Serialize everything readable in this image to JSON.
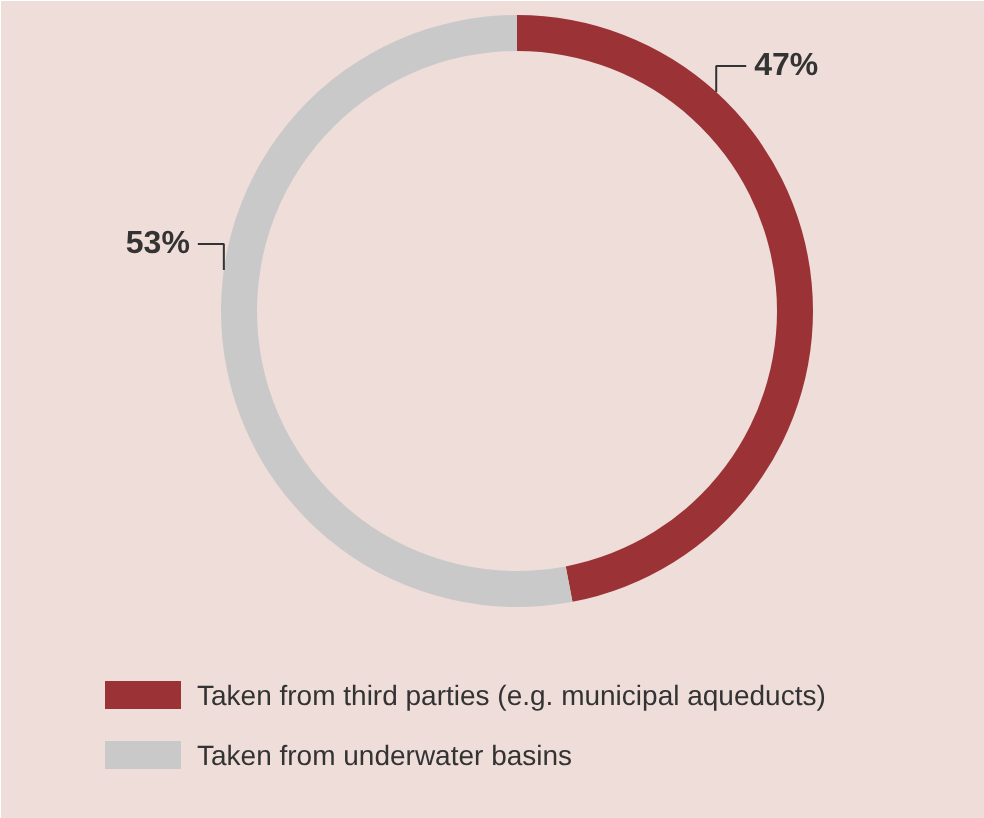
{
  "chart_data": {
    "type": "donut",
    "categories": [
      "Taken from third parties (e.g. municipal aqueducts)",
      "Taken from underwater basins"
    ],
    "values": [
      47,
      53
    ],
    "colors": [
      "#9b3336",
      "#c9c9c9"
    ],
    "value_labels": [
      "47%",
      "53%"
    ],
    "legend": "bottom"
  }
}
